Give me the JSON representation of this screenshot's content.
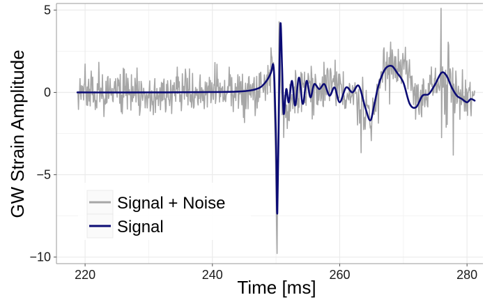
{
  "chart_data": {
    "type": "line",
    "title": "",
    "xlabel": "Time [ms]",
    "ylabel": "GW Strain Amplitude",
    "xlim": [
      215.5,
      282.5
    ],
    "ylim": [
      -10.4,
      5.4
    ],
    "x_ticks": [
      220,
      240,
      260,
      280
    ],
    "y_ticks": [
      5,
      0,
      -5,
      -10
    ],
    "x_tick_labels": [
      "220",
      "240",
      "260",
      "280"
    ],
    "y_tick_labels": [
      "5",
      "0",
      "−5",
      "−10"
    ],
    "grid": true,
    "legend_position": "bottom-left",
    "noise_x": [
      218.8,
      281.2
    ],
    "series": [
      {
        "name": "Signal + Noise",
        "color": "#a6a6a6",
        "x": [
          218.8,
          230.0,
          240.0,
          245.0,
          248.0,
          249.6,
          249.95,
          250.15,
          250.3,
          250.5,
          250.7,
          251.0,
          253.0,
          256.0,
          260.0,
          263.0,
          265.0,
          266.2,
          268.0,
          270.0,
          273.0,
          275.0,
          276.7,
          277.5,
          279.0,
          281.2
        ],
        "y": [
          0,
          0,
          0,
          0,
          0.4,
          1.7,
          -5,
          -10.0,
          -3,
          5.0,
          1,
          -1.5,
          0.2,
          0.4,
          0.2,
          -0.3,
          -1.7,
          0.6,
          2.2,
          1.4,
          -0.6,
          0.4,
          0.8,
          0.2,
          -0.3,
          -0.5
        ]
      },
      {
        "name": "Signal",
        "color": "#0b0b74",
        "x": [
          218.8,
          230.0,
          240.0,
          244.0,
          246.0,
          247.5,
          248.5,
          249.2,
          249.55,
          249.75,
          250.0,
          250.2,
          250.5,
          250.7,
          250.95,
          251.2,
          251.6,
          252.0,
          252.5,
          253.0,
          253.6,
          254.2,
          254.8,
          255.4,
          256.0,
          256.8,
          257.6,
          258.4,
          259.2,
          260.0,
          261.0,
          262.0,
          263.0,
          264.0,
          264.8,
          265.4,
          266.0,
          266.6,
          267.3,
          268.2,
          269.0,
          270.0,
          271.0,
          272.0,
          273.0,
          274.0,
          275.0,
          276.0,
          276.8,
          277.6,
          278.4,
          279.2,
          280.0,
          280.6,
          281.2
        ],
        "y": [
          0,
          0,
          0.02,
          0.05,
          0.12,
          0.3,
          0.7,
          1.2,
          1.7,
          0.6,
          -3.0,
          -7.3,
          0.5,
          4.2,
          1.5,
          -1.3,
          0.2,
          -0.6,
          0.7,
          -0.8,
          0.9,
          -0.7,
          0.7,
          -0.3,
          0.5,
          0.2,
          0.5,
          -0.2,
          0.3,
          -0.6,
          0.3,
          0.0,
          0.4,
          -0.9,
          -1.7,
          -0.8,
          0.3,
          1.0,
          1.5,
          1.6,
          1.2,
          0.6,
          -0.7,
          -0.9,
          -0.2,
          -0.1,
          0.5,
          1.2,
          1.0,
          0.3,
          -0.2,
          -0.4,
          -0.6,
          -0.4,
          -0.5
        ]
      }
    ]
  }
}
